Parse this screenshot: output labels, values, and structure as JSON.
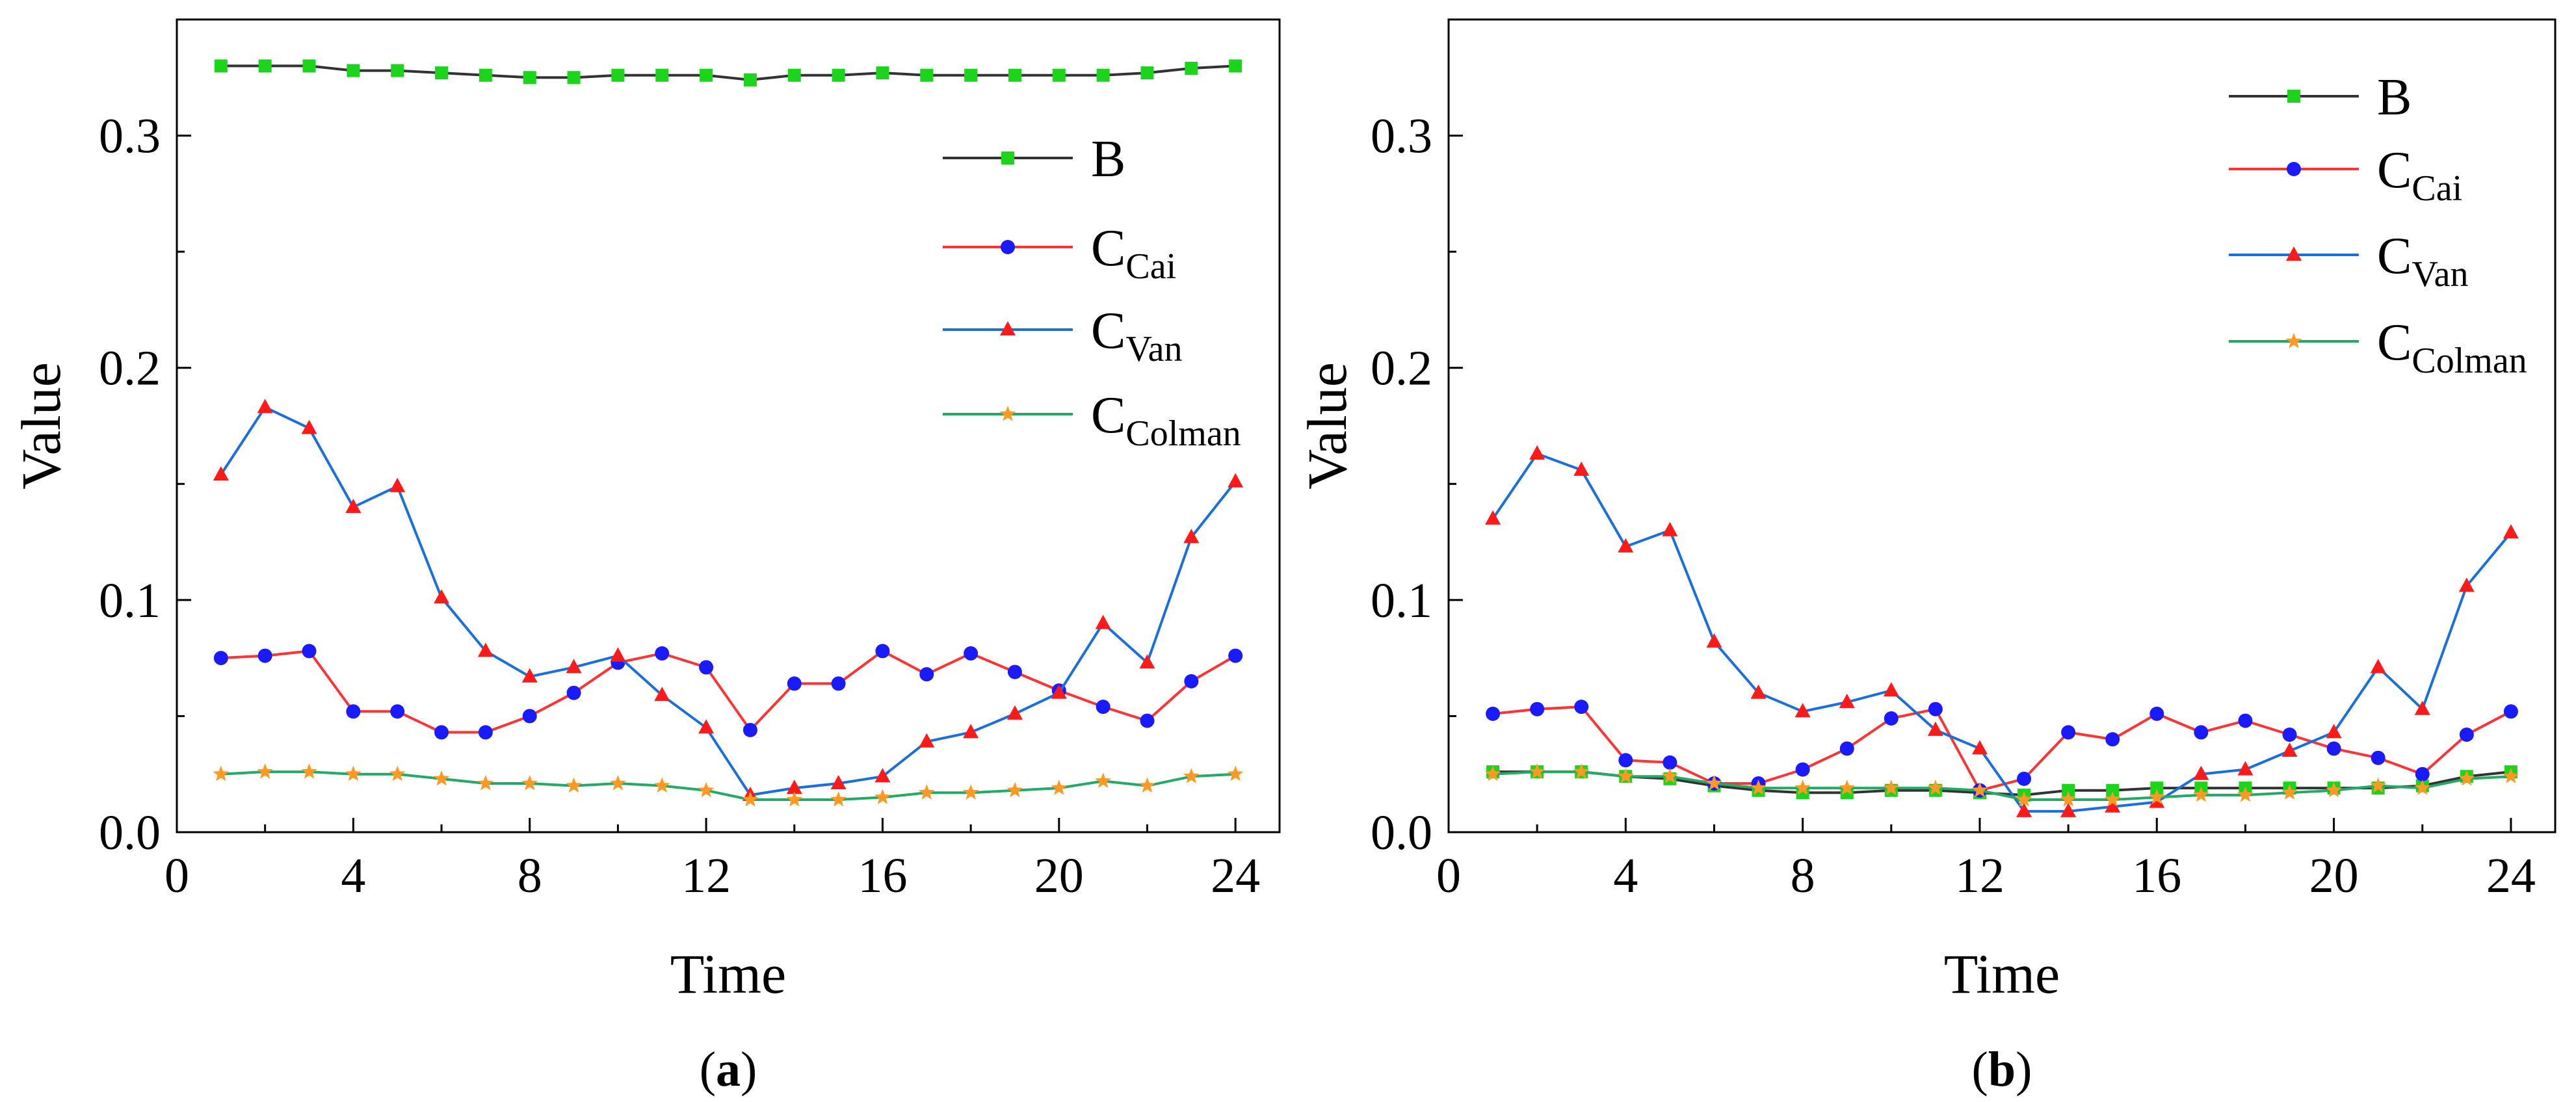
{
  "chart_data": [
    {
      "type": "line",
      "panel_label_open": "(",
      "panel_label_letter": "a",
      "panel_label_close": ")",
      "xlabel": "Time",
      "ylabel": "Value",
      "xlim": [
        0,
        25
      ],
      "ylim": [
        0,
        0.35
      ],
      "xticks": [
        0,
        4,
        8,
        12,
        16,
        20,
        24
      ],
      "xtick_labels": [
        "0",
        "4",
        "8",
        "12",
        "16",
        "20",
        "24"
      ],
      "yticks": [
        0,
        0.1,
        0.2,
        0.3
      ],
      "ytick_labels": [
        "0.0",
        "0.1",
        "0.2",
        "0.3"
      ],
      "legend_position": "top-right",
      "x": [
        1,
        2,
        3,
        4,
        5,
        6,
        7,
        8,
        9,
        10,
        11,
        12,
        13,
        14,
        15,
        16,
        17,
        18,
        19,
        20,
        21,
        22,
        23,
        24
      ],
      "series": [
        {
          "name": "B",
          "name_main": "B",
          "name_sub": "",
          "line_color": "#333333",
          "marker_color": "#1dd41d",
          "marker": "square",
          "values": [
            0.33,
            0.33,
            0.33,
            0.328,
            0.328,
            0.327,
            0.326,
            0.325,
            0.325,
            0.326,
            0.326,
            0.326,
            0.324,
            0.326,
            0.326,
            0.327,
            0.326,
            0.326,
            0.326,
            0.326,
            0.326,
            0.327,
            0.329,
            0.33
          ]
        },
        {
          "name": "CCai",
          "name_main": "C",
          "name_sub": "Cai",
          "line_color": "#ff3333",
          "marker_color": "#1a1aff",
          "marker": "circle",
          "values": [
            0.075,
            0.076,
            0.078,
            0.052,
            0.052,
            0.043,
            0.043,
            0.05,
            0.06,
            0.073,
            0.077,
            0.071,
            0.044,
            0.064,
            0.064,
            0.078,
            0.068,
            0.077,
            0.069,
            0.061,
            0.054,
            0.048,
            0.065,
            0.076
          ]
        },
        {
          "name": "CVan",
          "name_main": "C",
          "name_sub": "Van",
          "line_color": "#1a6fdf",
          "marker_color": "#ff1a1a",
          "marker": "triangle",
          "values": [
            0.154,
            0.183,
            0.174,
            0.14,
            0.149,
            0.101,
            0.078,
            0.067,
            0.071,
            0.076,
            0.059,
            0.045,
            0.016,
            0.019,
            0.021,
            0.024,
            0.039,
            0.043,
            0.051,
            0.06,
            0.09,
            0.073,
            0.127,
            0.151
          ]
        },
        {
          "name": "CColman",
          "name_main": "C",
          "name_sub": "Colman",
          "line_color": "#22aa66",
          "marker_color": "#ff9922",
          "marker": "star",
          "values": [
            0.025,
            0.026,
            0.026,
            0.025,
            0.025,
            0.023,
            0.021,
            0.021,
            0.02,
            0.021,
            0.02,
            0.018,
            0.014,
            0.014,
            0.014,
            0.015,
            0.017,
            0.017,
            0.018,
            0.019,
            0.022,
            0.02,
            0.024,
            0.025
          ]
        }
      ]
    },
    {
      "type": "line",
      "panel_label_open": "(",
      "panel_label_letter": "b",
      "panel_label_close": ")",
      "xlabel": "Time",
      "ylabel": "Value",
      "xlim": [
        0,
        25
      ],
      "ylim": [
        0,
        0.35
      ],
      "xticks": [
        0,
        4,
        8,
        12,
        16,
        20,
        24
      ],
      "xtick_labels": [
        "0",
        "4",
        "8",
        "12",
        "16",
        "20",
        "24"
      ],
      "yticks": [
        0,
        0.1,
        0.2,
        0.3
      ],
      "ytick_labels": [
        "0.0",
        "0.1",
        "0.2",
        "0.3"
      ],
      "legend_position": "top-right",
      "x": [
        1,
        2,
        3,
        4,
        5,
        6,
        7,
        8,
        9,
        10,
        11,
        12,
        13,
        14,
        15,
        16,
        17,
        18,
        19,
        20,
        21,
        22,
        23,
        24
      ],
      "series": [
        {
          "name": "B",
          "name_main": "B",
          "name_sub": "",
          "line_color": "#333333",
          "marker_color": "#1dd41d",
          "marker": "square",
          "values": [
            0.026,
            0.026,
            0.026,
            0.024,
            0.023,
            0.02,
            0.018,
            0.017,
            0.017,
            0.018,
            0.018,
            0.017,
            0.016,
            0.018,
            0.018,
            0.019,
            0.019,
            0.019,
            0.019,
            0.019,
            0.019,
            0.02,
            0.024,
            0.026
          ]
        },
        {
          "name": "CCai",
          "name_main": "C",
          "name_sub": "Cai",
          "line_color": "#ff3333",
          "marker_color": "#1a1aff",
          "marker": "circle",
          "values": [
            0.051,
            0.053,
            0.054,
            0.031,
            0.03,
            0.021,
            0.021,
            0.027,
            0.036,
            0.049,
            0.053,
            0.018,
            0.023,
            0.043,
            0.04,
            0.051,
            0.043,
            0.048,
            0.042,
            0.036,
            0.032,
            0.025,
            0.042,
            0.052
          ]
        },
        {
          "name": "CVan",
          "name_main": "C",
          "name_sub": "Van",
          "line_color": "#1a6fdf",
          "marker_color": "#ff1a1a",
          "marker": "triangle",
          "values": [
            0.135,
            0.163,
            0.156,
            0.123,
            0.13,
            0.082,
            0.06,
            0.052,
            0.056,
            0.061,
            0.044,
            0.036,
            0.009,
            0.009,
            0.011,
            0.013,
            0.025,
            0.027,
            0.035,
            0.043,
            0.071,
            0.053,
            0.106,
            0.129
          ]
        },
        {
          "name": "CColman",
          "name_main": "C",
          "name_sub": "Colman",
          "line_color": "#22aa66",
          "marker_color": "#ff9922",
          "marker": "star",
          "values": [
            0.025,
            0.026,
            0.026,
            0.024,
            0.024,
            0.021,
            0.019,
            0.019,
            0.019,
            0.019,
            0.019,
            0.018,
            0.014,
            0.014,
            0.014,
            0.015,
            0.016,
            0.016,
            0.017,
            0.018,
            0.02,
            0.019,
            0.023,
            0.024
          ]
        }
      ]
    }
  ]
}
